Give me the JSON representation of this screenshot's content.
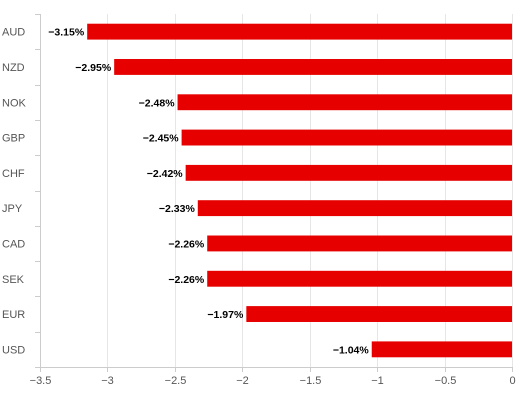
{
  "chart_data": {
    "type": "bar",
    "orientation": "horizontal",
    "categories": [
      "AUD",
      "NZD",
      "NOK",
      "GBP",
      "CHF",
      "JPY",
      "CAD",
      "SEK",
      "EUR",
      "USD"
    ],
    "values": [
      -3.15,
      -2.95,
      -2.48,
      -2.45,
      -2.42,
      -2.33,
      -2.26,
      -2.26,
      -1.97,
      -1.04
    ],
    "data_labels": [
      "−3.15%",
      "−2.95%",
      "−2.48%",
      "−2.45%",
      "−2.42%",
      "−2.33%",
      "−2.26%",
      "−2.26%",
      "−1.97%",
      "−1.04%"
    ],
    "xlim": [
      -3.5,
      0
    ],
    "x_ticks": [
      -3.5,
      -3,
      -2.5,
      -2,
      -1.5,
      -1,
      -0.5,
      0
    ],
    "x_tick_labels": [
      "−3.5",
      "−3",
      "−2.5",
      "−2",
      "−1.5",
      "−1",
      "−0.5",
      "0"
    ],
    "bar_color": "#e60000",
    "grid": true,
    "legend": "none",
    "title": "",
    "xlabel": "",
    "ylabel": ""
  }
}
